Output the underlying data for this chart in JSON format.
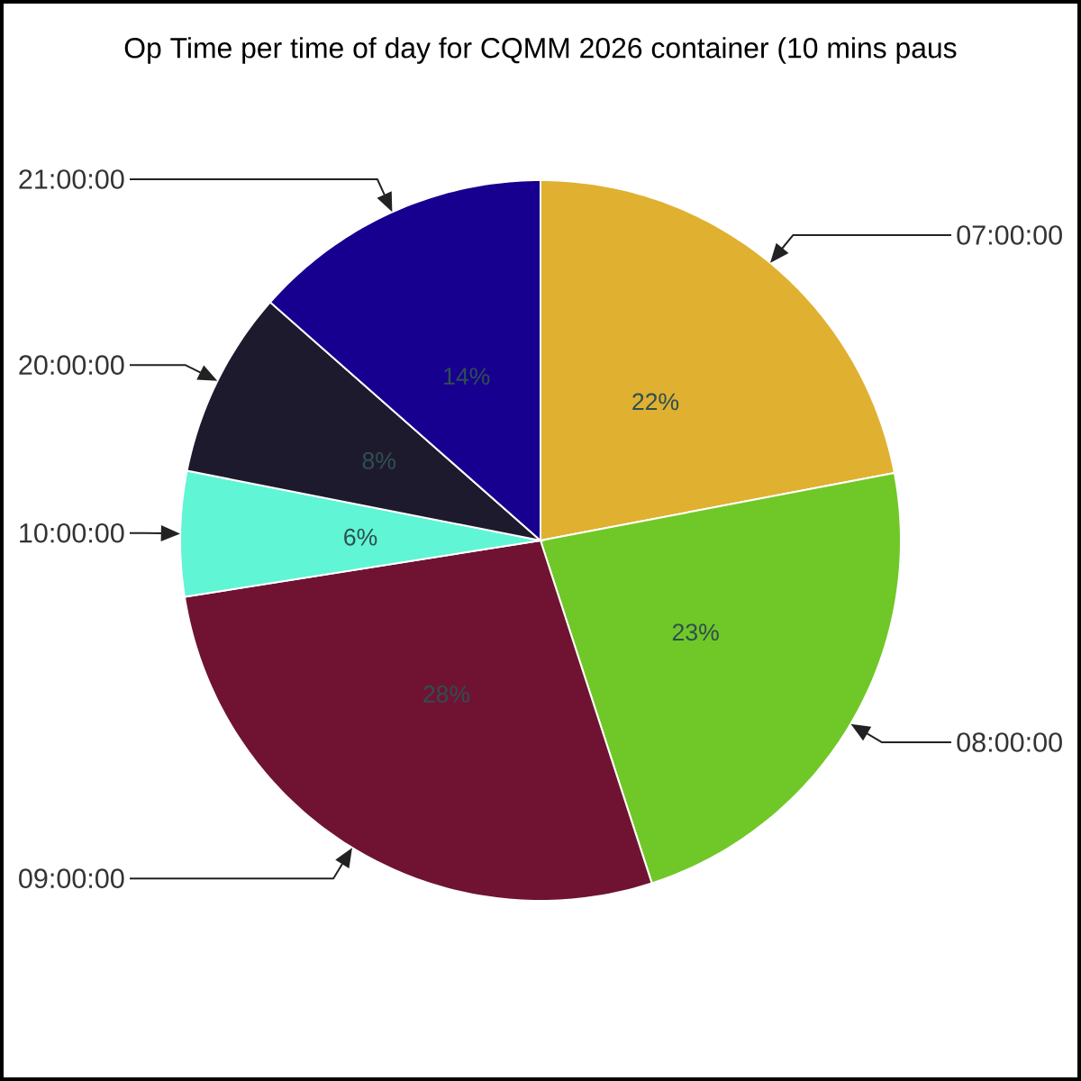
{
  "chart_data": {
    "type": "pie",
    "title": "Op Time per time of day for CQMM 2026 container (10 mins paus",
    "categories": [
      "07:00:00",
      "08:00:00",
      "09:00:00",
      "10:00:00",
      "20:00:00",
      "21:00:00"
    ],
    "values": [
      22,
      23,
      27.5,
      5.6,
      8.4,
      13.5
    ],
    "value_labels": [
      "22%",
      "23%",
      "28%",
      "6%",
      "8%",
      "14%"
    ],
    "colors": [
      "#e0b030",
      "#70c828",
      "#701333",
      "#60f5d5",
      "#1e1a2d",
      "#170090"
    ]
  }
}
